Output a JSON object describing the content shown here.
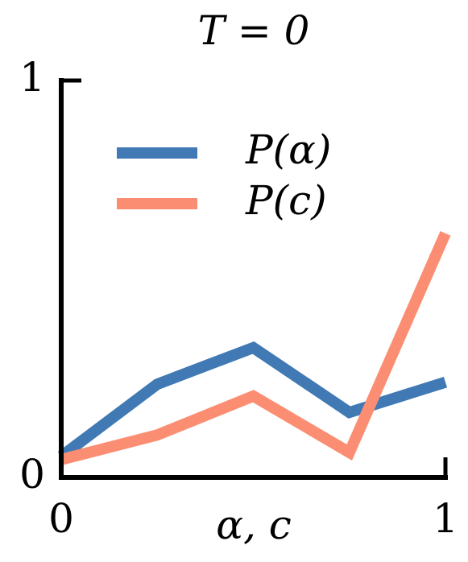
{
  "chart_data": {
    "type": "line",
    "title": "T = 0",
    "xlabel": "α, c",
    "x": [
      0,
      0.25,
      0.5,
      0.75,
      1
    ],
    "series": [
      {
        "name": "P(α)",
        "color": "#4179b4",
        "values": [
          0.053,
          0.235,
          0.327,
          0.164,
          0.24
        ]
      },
      {
        "name": "P(c)",
        "color": "#fb8e72",
        "values": [
          0.045,
          0.107,
          0.205,
          0.063,
          0.615
        ]
      }
    ],
    "xlim": [
      0,
      1
    ],
    "ylim": [
      0,
      1
    ],
    "xticks": [
      0,
      1
    ],
    "yticks": [
      0,
      1
    ],
    "grid": false,
    "legend": "upper center"
  }
}
